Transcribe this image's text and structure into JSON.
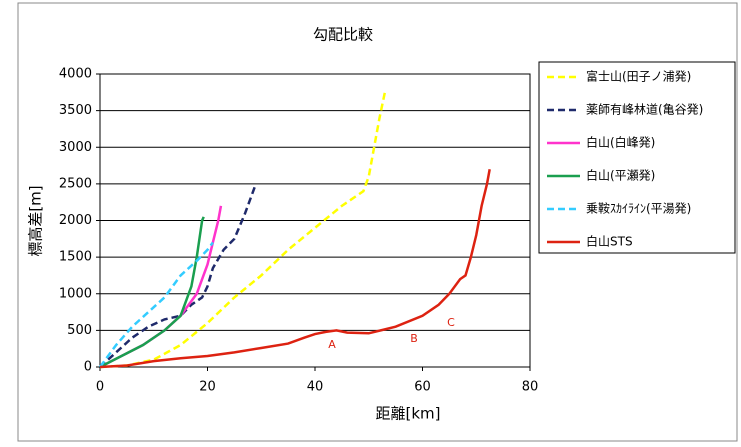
{
  "chart_data": {
    "type": "line",
    "title": "勾配比較",
    "x_label": "距離[km]",
    "y_label": "標高差[m]",
    "xlim": [
      0,
      80
    ],
    "xticks": [
      0,
      20,
      40,
      60,
      80
    ],
    "ylim": [
      0,
      4000
    ],
    "yticks": [
      0,
      500,
      1000,
      1500,
      2000,
      2500,
      3000,
      3500,
      4000
    ],
    "grid": true,
    "legend": "right",
    "annotations": [
      "A",
      "B",
      "C"
    ],
    "series": [
      {
        "name": "富士山(田子ノ浦発)",
        "color": "#ffff00",
        "dash": true,
        "x": [
          0,
          5,
          10,
          15,
          20,
          25,
          30,
          35,
          40,
          45,
          49,
          50,
          51,
          52,
          53
        ],
        "values": [
          0,
          20,
          100,
          300,
          600,
          950,
          1250,
          1600,
          1900,
          2200,
          2400,
          2600,
          3000,
          3400,
          3750
        ]
      },
      {
        "name": "薬師有峰林道(亀谷発)",
        "color": "#1f2a6b",
        "dash": true,
        "x": [
          0,
          3,
          6,
          9,
          12,
          15,
          17,
          19,
          20,
          21,
          23,
          25,
          27,
          29
        ],
        "values": [
          0,
          200,
          400,
          550,
          650,
          700,
          850,
          950,
          1100,
          1350,
          1600,
          1750,
          2100,
          2500
        ]
      },
      {
        "name": "白山(白峰発)",
        "color": "#ff33cc",
        "dash": false,
        "x": [
          0,
          4,
          8,
          12,
          15,
          18,
          20,
          21,
          22,
          22.5
        ],
        "values": [
          0,
          150,
          300,
          500,
          700,
          1000,
          1400,
          1700,
          2000,
          2200
        ]
      },
      {
        "name": "白山(平瀬発)",
        "color": "#1a9f4f",
        "dash": false,
        "x": [
          0,
          4,
          8,
          12,
          15,
          17,
          18,
          19,
          19.3
        ],
        "values": [
          0,
          150,
          300,
          500,
          700,
          1100,
          1500,
          2000,
          2050
        ]
      },
      {
        "name": "乗鞍ｽｶｲﾗｲﾝ(平湯発)",
        "color": "#33ccff",
        "dash": true,
        "x": [
          0,
          3,
          6,
          9,
          12,
          15,
          18,
          20,
          21
        ],
        "values": [
          0,
          300,
          550,
          750,
          950,
          1250,
          1450,
          1600,
          1700
        ]
      },
      {
        "name": "白山STS",
        "color": "#dd2211",
        "dash": false,
        "x": [
          0,
          5,
          10,
          15,
          20,
          25,
          30,
          35,
          38,
          40,
          42,
          44,
          46,
          50,
          55,
          60,
          63,
          65,
          67,
          68,
          69,
          70,
          71,
          72,
          72.5
        ],
        "values": [
          0,
          20,
          80,
          120,
          150,
          200,
          260,
          320,
          400,
          450,
          480,
          500,
          470,
          460,
          550,
          700,
          850,
          1000,
          1200,
          1250,
          1500,
          1800,
          2200,
          2500,
          2700
        ]
      }
    ]
  }
}
